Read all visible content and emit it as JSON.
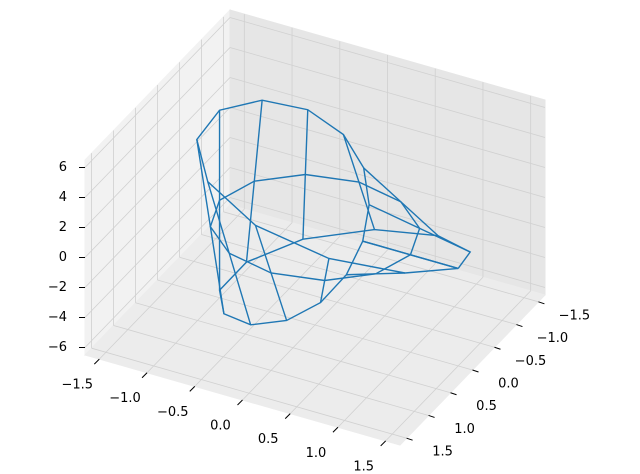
{
  "chart_data": {
    "type": "wireframe3d",
    "color": "#1f77b4",
    "xlim": [
      -1.65,
      1.65
    ],
    "ylim": [
      -1.65,
      1.65
    ],
    "zlim": [
      -6.5,
      6.5
    ],
    "xticks": [
      {
        "value": -1.5,
        "label": "−1.5"
      },
      {
        "value": -1,
        "label": "−1.0"
      },
      {
        "value": -0.5,
        "label": "−0.5"
      },
      {
        "value": 0,
        "label": "0.0"
      },
      0.5,
      {
        "value": 1,
        "label": "1.0"
      },
      1.5
    ],
    "yticks": [
      {
        "value": -1.5,
        "label": "−1.5"
      },
      {
        "value": -1,
        "label": "−1.0"
      },
      {
        "value": -0.5,
        "label": "−0.5"
      },
      {
        "value": 0,
        "label": "0.0"
      },
      0.5,
      {
        "value": 1,
        "label": "1.0"
      },
      1.5
    ],
    "zticks": [
      {
        "value": -6,
        "label": "−6"
      },
      {
        "value": -4,
        "label": "−4"
      },
      {
        "value": -2,
        "label": "−2"
      },
      0,
      2,
      4,
      6
    ],
    "grid": true,
    "surface": {
      "x": [
        [
          0.5,
          0.448,
          0.284,
          0,
          -0.375,
          -0.754,
          -1,
          -0.978,
          -0.625,
          0,
          0.717,
          1.284,
          1.5
        ],
        [
          1,
          0.866,
          0.5,
          0,
          -0.5,
          -0.866,
          -1,
          -0.866,
          -0.5,
          0,
          0.5,
          0.866,
          1
        ],
        [
          1.5,
          1.284,
          0.717,
          0,
          -0.625,
          -0.978,
          -1,
          -0.754,
          -0.375,
          0,
          0.284,
          0.448,
          0.5
        ]
      ],
      "y": [
        [
          0,
          0.259,
          0.491,
          0.646,
          0.65,
          0.435,
          0,
          -0.565,
          -1.083,
          -1.354,
          -1.241,
          -0.742,
          0
        ],
        [
          0,
          0.5,
          0.866,
          1,
          0.866,
          0.5,
          0,
          -0.5,
          -0.866,
          -1,
          -0.866,
          -0.5,
          0
        ],
        [
          0,
          0.742,
          1.241,
          1.354,
          1.083,
          0.565,
          0,
          -0.435,
          -0.65,
          -0.646,
          -0.491,
          -0.259,
          0
        ]
      ],
      "z": [
        [
          0,
          -1.55,
          -3,
          -4.24,
          -5.2,
          -5.8,
          -6,
          -5.8,
          -5.2,
          -4.24,
          -3,
          -1.55,
          0
        ],
        [
          0,
          0,
          0,
          0,
          0,
          0,
          0,
          0,
          0,
          0,
          0,
          0,
          0
        ],
        [
          0,
          1.55,
          3,
          4.24,
          5.2,
          5.8,
          6,
          5.8,
          5.2,
          4.24,
          3,
          1.55,
          0
        ]
      ]
    }
  }
}
